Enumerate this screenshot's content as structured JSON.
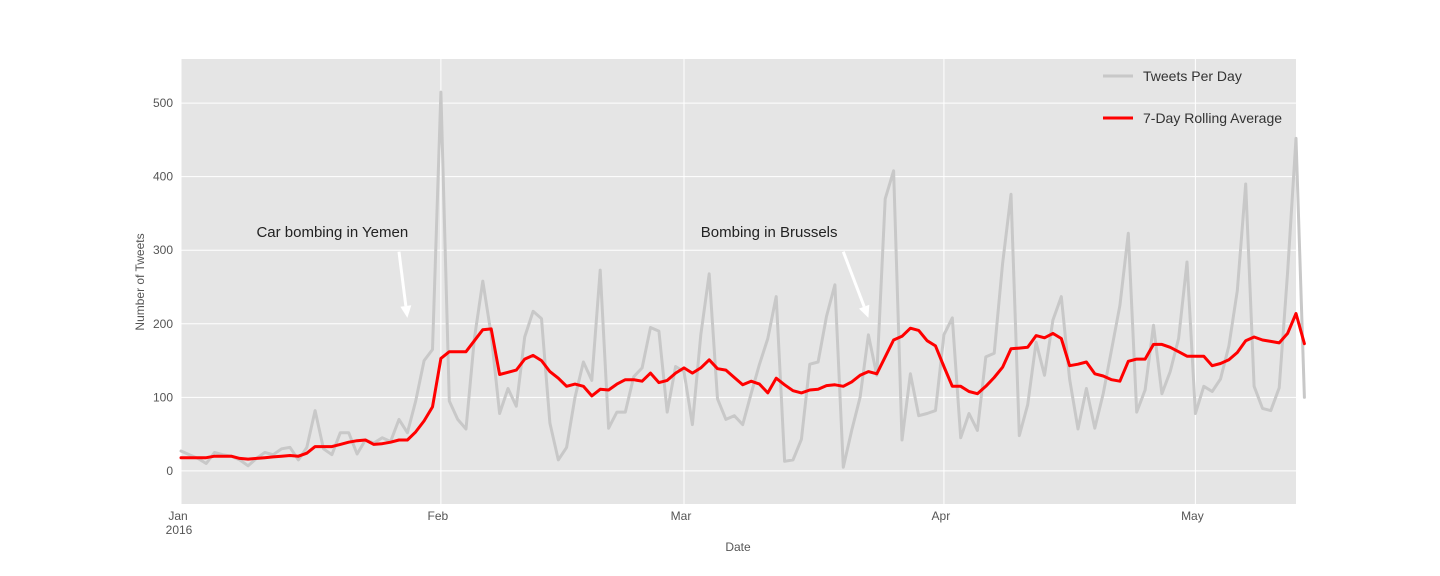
{
  "chart_data": {
    "type": "line",
    "title": "",
    "xlabel": "Date",
    "ylabel": "Number of Tweets",
    "x_start": "2016-01-01",
    "x_end": "2016-05-13",
    "ylim": [
      -45,
      560
    ],
    "grid": true,
    "legend_position": "top-right",
    "x_ticks": [
      {
        "date": "2016-01-01",
        "label": "Jan",
        "sublabel": "2016"
      },
      {
        "date": "2016-02-01",
        "label": "Feb",
        "sublabel": ""
      },
      {
        "date": "2016-03-01",
        "label": "Mar",
        "sublabel": ""
      },
      {
        "date": "2016-04-01",
        "label": "Apr",
        "sublabel": ""
      },
      {
        "date": "2016-05-01",
        "label": "May",
        "sublabel": ""
      }
    ],
    "y_ticks": [
      {
        "value": 0,
        "label": "0"
      },
      {
        "value": 100,
        "label": "100"
      },
      {
        "value": 200,
        "label": "200"
      },
      {
        "value": 300,
        "label": "300"
      },
      {
        "value": 400,
        "label": "400"
      },
      {
        "value": 500,
        "label": "500"
      }
    ],
    "series": [
      {
        "name": "Tweets Per Day",
        "color": "#c8c8c8",
        "values": [
          27,
          22,
          17,
          10,
          25,
          22,
          20,
          15,
          7,
          17,
          25,
          22,
          30,
          32,
          15,
          32,
          82,
          30,
          22,
          52,
          52,
          23,
          42,
          38,
          45,
          40,
          70,
          52,
          95,
          150,
          165,
          515,
          95,
          70,
          57,
          180,
          258,
          185,
          78,
          112,
          88,
          182,
          217,
          207,
          65,
          15,
          32,
          100,
          148,
          123,
          273,
          58,
          80,
          80,
          128,
          140,
          195,
          190,
          80,
          142,
          135,
          63,
          185,
          268,
          98,
          70,
          75,
          63,
          105,
          145,
          180,
          237,
          13,
          15,
          43,
          145,
          148,
          210,
          253,
          5,
          55,
          100,
          185,
          130,
          370,
          408,
          42,
          132,
          75,
          78,
          82,
          185,
          208,
          45,
          78,
          55,
          155,
          160,
          282,
          376,
          48,
          90,
          175,
          130,
          205,
          237,
          125,
          57,
          112,
          58,
          105,
          165,
          225,
          323,
          80,
          110,
          198,
          105,
          135,
          180,
          284,
          78,
          115,
          108,
          125,
          170,
          245,
          390,
          115,
          85,
          82,
          113,
          270,
          452,
          100
        ],
        "width": 3
      },
      {
        "name": "7-Day Rolling Average",
        "color": "#ff0000",
        "values": [
          18,
          18,
          18,
          18,
          20,
          20,
          20,
          17,
          16,
          17,
          18,
          19,
          20,
          21,
          20,
          24,
          33,
          33,
          33,
          36,
          39,
          41,
          42,
          36,
          37,
          39,
          42,
          42,
          53,
          68,
          87,
          153,
          162,
          162,
          162,
          177,
          192,
          193,
          131,
          134,
          137,
          152,
          157,
          150,
          135,
          126,
          115,
          118,
          115,
          102,
          111,
          110,
          118,
          124,
          124,
          122,
          133,
          120,
          123,
          133,
          140,
          133,
          140,
          151,
          139,
          137,
          127,
          117,
          122,
          118,
          106,
          126,
          117,
          109,
          106,
          110,
          111,
          116,
          117,
          115,
          121,
          130,
          135,
          132,
          155,
          178,
          183,
          194,
          191,
          177,
          170,
          142,
          115,
          115,
          108,
          105,
          115,
          127,
          141,
          166,
          167,
          168,
          184,
          181,
          187,
          180,
          143,
          145,
          148,
          132,
          129,
          124,
          122,
          149,
          152,
          152,
          172,
          172,
          168,
          162,
          156,
          156,
          156,
          143,
          146,
          151,
          161,
          177,
          182,
          178,
          176,
          174,
          187,
          214,
          173
        ],
        "width": 3
      }
    ],
    "annotations": [
      {
        "text": "Car bombing in Yemen",
        "text_date": "2016-01-10",
        "text_value": 318,
        "arrow_from_date": "2016-01-27",
        "arrow_from_value": 298,
        "arrow_to_date": "2016-01-28",
        "arrow_to_value": 208
      },
      {
        "text": "Bombing in Brussels",
        "text_date": "2016-03-03",
        "text_value": 318,
        "arrow_from_date": "2016-03-20",
        "arrow_from_value": 298,
        "arrow_to_date": "2016-03-23",
        "arrow_to_value": 208
      }
    ]
  },
  "colors": {
    "plot_background": "#e5e5e5",
    "grid": "#ffffff",
    "annotation_arrow": "#ffffff"
  }
}
